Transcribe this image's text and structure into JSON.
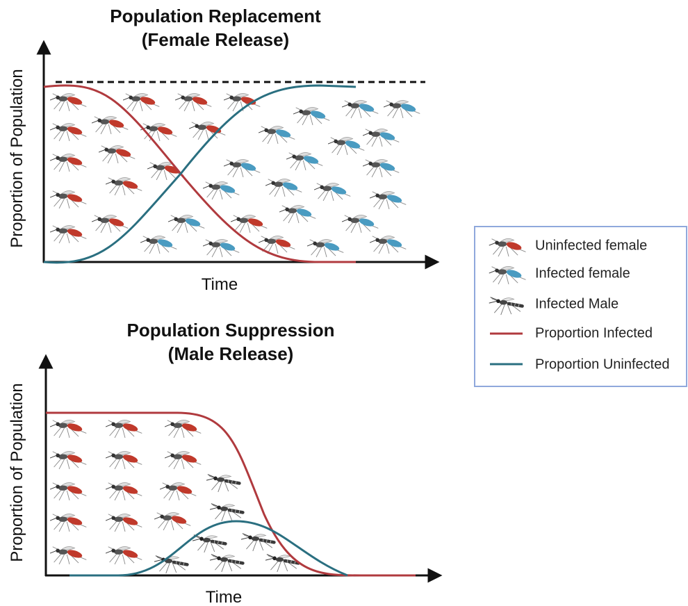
{
  "panels": [
    {
      "title": [
        "Population Replacement",
        "(Female Release)"
      ],
      "y_label": "Proportion of Population",
      "x_label": "Time"
    },
    {
      "title": [
        "Population Suppression",
        "(Male Release)"
      ],
      "y_label": "Proportion of Population",
      "x_label": "Time"
    }
  ],
  "legend": {
    "items": [
      "Uninfected female",
      "Infected female",
      "Infected Male",
      "Proportion Infected",
      "Proportion Uninfected"
    ]
  }
}
